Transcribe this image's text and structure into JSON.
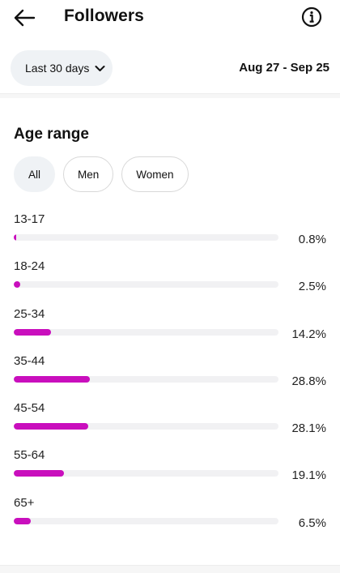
{
  "header": {
    "title": "Followers",
    "back_icon": "arrow-left-icon",
    "info_icon": "info-icon"
  },
  "date_filter": {
    "selected": "Last 30 days",
    "range": "Aug 27 - Sep 25"
  },
  "age_section": {
    "title": "Age range",
    "filters": [
      {
        "label": "All",
        "active": true
      },
      {
        "label": "Men",
        "active": false
      },
      {
        "label": "Women",
        "active": false
      }
    ],
    "rows": [
      {
        "label": "13-17",
        "value": "0.8%",
        "fraction": 0.008
      },
      {
        "label": "18-24",
        "value": "2.5%",
        "fraction": 0.025
      },
      {
        "label": "25-34",
        "value": "14.2%",
        "fraction": 0.142
      },
      {
        "label": "35-44",
        "value": "28.8%",
        "fraction": 0.288
      },
      {
        "label": "45-54",
        "value": "28.1%",
        "fraction": 0.281
      },
      {
        "label": "55-64",
        "value": "19.1%",
        "fraction": 0.191
      },
      {
        "label": "65+",
        "value": "6.5%",
        "fraction": 0.065
      }
    ]
  },
  "colors": {
    "bar": "#c90fbd",
    "track": "#f1f1f3",
    "chip_active": "#eff2f5"
  }
}
